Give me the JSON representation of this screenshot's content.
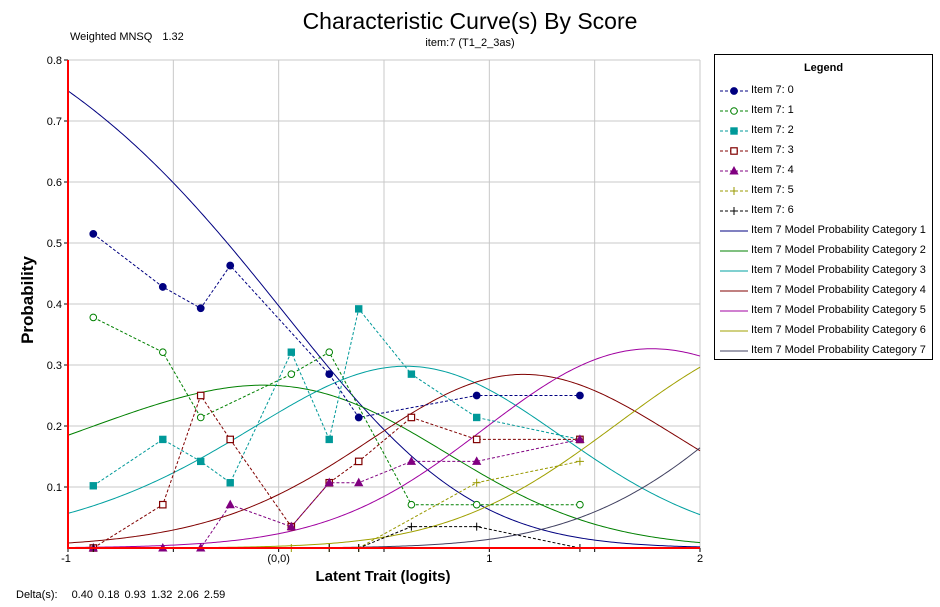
{
  "chart_data": {
    "type": "line",
    "title": "Characteristic Curve(s) By Score",
    "subtitle": "item:7 (T1_2_3as)",
    "stat_label": "Weighted MNSQ",
    "stat_value": "1.32",
    "xlabel": "Latent Trait (logits)",
    "ylabel": "Probability",
    "xlim": [
      -1,
      2
    ],
    "ylim": [
      0,
      0.8
    ],
    "x_ticks": [
      "-1",
      "(0,0)",
      "1",
      "2"
    ],
    "y_ticks": [
      "0.1",
      "0.2",
      "0.3",
      "0.4",
      "0.5",
      "0.6",
      "0.7",
      "0.8"
    ],
    "grid": true,
    "legend_title": "Legend",
    "legend_position": "right",
    "delta_label": "Delta(s):",
    "deltas": [
      0.4,
      0.18,
      0.93,
      1.32,
      2.06,
      2.59
    ],
    "observed_series": [
      {
        "name": "Item 7: 0",
        "color": "#000080",
        "marker": "diamond-filled",
        "x": [
          -0.88,
          -0.55,
          -0.37,
          -0.23,
          0.24,
          0.38,
          0.94,
          1.43
        ],
        "y": [
          0.515,
          0.428,
          0.393,
          0.463,
          0.285,
          0.214,
          0.25,
          0.25
        ]
      },
      {
        "name": "Item 7: 1",
        "color": "#008000",
        "marker": "circle-open",
        "x": [
          -0.88,
          -0.55,
          -0.37,
          0.06,
          0.24,
          0.63,
          0.94,
          1.43
        ],
        "y": [
          0.378,
          0.321,
          0.214,
          0.285,
          0.321,
          0.071,
          0.071,
          0.071
        ]
      },
      {
        "name": "Item 7: 2",
        "color": "#009999",
        "marker": "square-filled",
        "x": [
          -0.88,
          -0.55,
          -0.37,
          -0.23,
          0.06,
          0.24,
          0.38,
          0.63,
          0.94,
          1.43
        ],
        "y": [
          0.102,
          0.178,
          0.142,
          0.107,
          0.321,
          0.178,
          0.392,
          0.285,
          0.214,
          0.178
        ]
      },
      {
        "name": "Item 7: 3",
        "color": "#800000",
        "marker": "square-open",
        "x": [
          -0.88,
          -0.55,
          -0.37,
          -0.23,
          0.06,
          0.24,
          0.38,
          0.63,
          0.94,
          1.43
        ],
        "y": [
          0.0,
          0.071,
          0.25,
          0.178,
          0.035,
          0.107,
          0.142,
          0.214,
          0.178,
          0.178
        ]
      },
      {
        "name": "Item 7: 4",
        "color": "#800080",
        "marker": "triangle-filled",
        "x": [
          -0.88,
          -0.55,
          -0.37,
          -0.23,
          0.06,
          0.24,
          0.38,
          0.63,
          0.94,
          1.43
        ],
        "y": [
          0.0,
          0.0,
          0.0,
          0.071,
          0.035,
          0.107,
          0.107,
          0.142,
          0.142,
          0.178
        ]
      },
      {
        "name": "Item 7: 5",
        "color": "#999900",
        "marker": "plus",
        "x": [
          -0.88,
          0.06,
          0.24,
          0.38,
          0.94,
          1.43
        ],
        "y": [
          0.0,
          0.0,
          0.0,
          0.0,
          0.107,
          0.142
        ]
      },
      {
        "name": "Item 7: 6",
        "color": "#000000",
        "marker": "plus",
        "x": [
          -0.88,
          0.24,
          0.38,
          0.63,
          0.94,
          1.43
        ],
        "y": [
          0.0,
          0.0,
          0.0,
          0.035,
          0.035,
          0.0
        ]
      }
    ],
    "model_series": [
      {
        "name": "Item 7 Model Probability Category 1",
        "color": "#000080"
      },
      {
        "name": "Item 7 Model Probability Category 2",
        "color": "#008000"
      },
      {
        "name": "Item 7 Model Probability Category 3",
        "color": "#00a0a0"
      },
      {
        "name": "Item 7 Model Probability Category 4",
        "color": "#800000"
      },
      {
        "name": "Item 7 Model Probability Category 5",
        "color": "#a000a0"
      },
      {
        "name": "Item 7 Model Probability Category 6",
        "color": "#a0a000"
      },
      {
        "name": "Item 7 Model Probability Category 7",
        "color": "#404060"
      }
    ]
  }
}
